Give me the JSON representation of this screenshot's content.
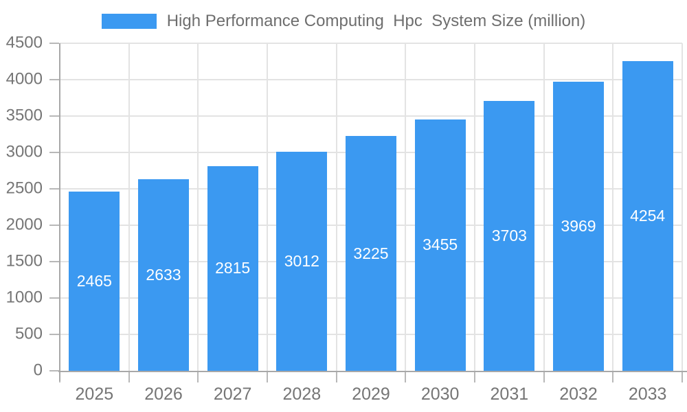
{
  "colors": {
    "bar": "#3B99F1",
    "grid": "#E3E3E3",
    "axis": "#A8A8A8",
    "tick": "#B8B8B8",
    "axis_label": "#757575",
    "legend_label": "#6E6E6E",
    "bar_label": "#FFFFFF",
    "background": "#FFFFFF"
  },
  "chart_data": {
    "type": "bar",
    "title": "High Performance Computing  Hpc  System Size (million)",
    "legend": {
      "position": "top",
      "entries": [
        "High Performance Computing  Hpc  System Size (million)"
      ]
    },
    "categories": [
      "2025",
      "2026",
      "2027",
      "2028",
      "2029",
      "2030",
      "2031",
      "2032",
      "2033"
    ],
    "values": [
      2465,
      2633,
      2815,
      3012,
      3225,
      3455,
      3703,
      3969,
      4254
    ],
    "bar_value_labels": [
      "2465",
      "2633",
      "2815",
      "3012",
      "3225",
      "3455",
      "3703",
      "3969",
      "4254"
    ],
    "bar_label_position": "inside-center",
    "xlabel": "",
    "ylabel": "",
    "ylim": [
      0,
      4500
    ],
    "ytick_interval": 500,
    "ytick_labels": [
      "0",
      "500",
      "1000",
      "1500",
      "2000",
      "2500",
      "3000",
      "3500",
      "4000",
      "4500"
    ],
    "grid": true
  }
}
